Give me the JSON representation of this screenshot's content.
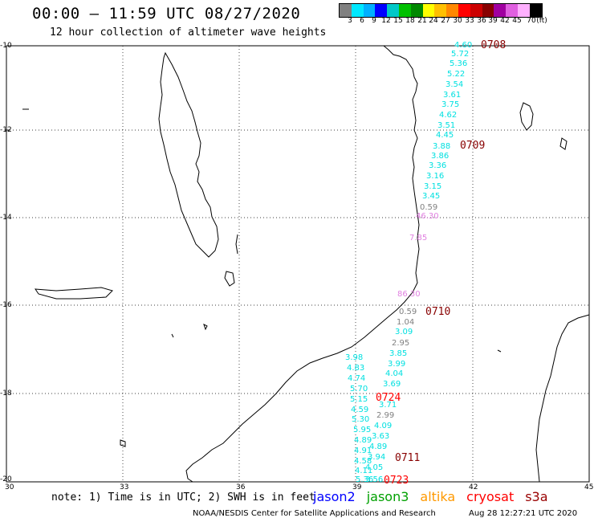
{
  "header": {
    "title": "00:00 – 11:59 UTC 08/27/2020",
    "subtitle": "12 hour collection of altimeter wave heights"
  },
  "colorbar": {
    "colors": [
      "#808080",
      "#00e8ff",
      "#00b0ff",
      "#0000ff",
      "#00c8c8",
      "#00c000",
      "#008800",
      "#ffff00",
      "#ffc000",
      "#ff8800",
      "#ff0000",
      "#cc0000",
      "#880000",
      "#a000a0",
      "#e060e0",
      "#ffb0ff",
      "#000000"
    ],
    "ticks": [
      "3",
      "6",
      "9",
      "12",
      "15",
      "18",
      "21",
      "24",
      "27",
      "30",
      "33",
      "36",
      "39",
      "42",
      "45",
      "70",
      "(ft)"
    ]
  },
  "map": {
    "lat_ticks": [
      "-10",
      "-12",
      "-14",
      "-16",
      "-18",
      "-20"
    ],
    "lon_ticks": [
      "30",
      "33",
      "36",
      "39",
      "42",
      "45"
    ]
  },
  "observations": [
    {
      "text": "4.60",
      "color": "#00e0e0"
    },
    {
      "text": "5.72",
      "color": "#00e0e0"
    },
    {
      "text": "5.36",
      "color": "#00e0e0"
    },
    {
      "text": "5.22",
      "color": "#00e0e0"
    },
    {
      "text": "3.54",
      "color": "#00e0e0"
    },
    {
      "text": "3.61",
      "color": "#00e0e0"
    },
    {
      "text": "3.75",
      "color": "#00e0e0"
    },
    {
      "text": "4.62",
      "color": "#00e0e0"
    },
    {
      "text": "3.51",
      "color": "#00e0e0"
    },
    {
      "text": "4.45",
      "color": "#00e0e0"
    },
    {
      "text": "3.88",
      "color": "#00e0e0"
    },
    {
      "text": "3.86",
      "color": "#00e0e0"
    },
    {
      "text": "3.36",
      "color": "#00e0e0"
    },
    {
      "text": "3.16",
      "color": "#00e0e0"
    },
    {
      "text": "3.15",
      "color": "#00e0e0"
    },
    {
      "text": "3.45",
      "color": "#00e0e0"
    },
    {
      "text": "0.59",
      "color": "#808080"
    },
    {
      "text": "46.30",
      "color": "#e080e0"
    },
    {
      "text": "7.85",
      "color": "#e080e0"
    },
    {
      "text": "86.30",
      "color": "#e080e0"
    },
    {
      "text": "0.59",
      "color": "#808080"
    },
    {
      "text": "1.04",
      "color": "#808080"
    },
    {
      "text": "3.09",
      "color": "#00e0e0"
    },
    {
      "text": "2.95",
      "color": "#808080"
    },
    {
      "text": "3.85",
      "color": "#00e0e0"
    },
    {
      "text": "3.99",
      "color": "#00e0e0"
    },
    {
      "text": "4.04",
      "color": "#00e0e0"
    },
    {
      "text": "3.69",
      "color": "#00e0e0"
    },
    {
      "text": "3.71",
      "color": "#00e0e0"
    },
    {
      "text": "2.99",
      "color": "#808080"
    },
    {
      "text": "4.09",
      "color": "#00e0e0"
    },
    {
      "text": "3.63",
      "color": "#00e0e0"
    },
    {
      "text": "4.89",
      "color": "#00e0e0"
    },
    {
      "text": "3.94",
      "color": "#00e0e0"
    },
    {
      "text": "4.05",
      "color": "#00e0e0"
    },
    {
      "text": "3.98",
      "color": "#00e0e0"
    },
    {
      "text": "4.83",
      "color": "#00e0e0"
    },
    {
      "text": "4.74",
      "color": "#00e0e0"
    },
    {
      "text": "5.70",
      "color": "#00e0e0"
    },
    {
      "text": "5.15",
      "color": "#00e0e0"
    },
    {
      "text": "4.59",
      "color": "#00e0e0"
    },
    {
      "text": "5.30",
      "color": "#00e0e0"
    },
    {
      "text": "5.95",
      "color": "#00e0e0"
    },
    {
      "text": "4.89",
      "color": "#00e0e0"
    },
    {
      "text": "4.91",
      "color": "#00e0e0"
    },
    {
      "text": "4.58",
      "color": "#00e0e0"
    },
    {
      "text": "4.11",
      "color": "#00e0e0"
    },
    {
      "text": "5.36",
      "color": "#00e0e0"
    },
    {
      "text": "3.56",
      "color": "#00e0e0"
    }
  ],
  "time_marks": [
    {
      "text": "0708",
      "color": "#880000"
    },
    {
      "text": "0709",
      "color": "#880000"
    },
    {
      "text": "0710",
      "color": "#880000"
    },
    {
      "text": "0724",
      "color": "#ff0000"
    },
    {
      "text": "0711",
      "color": "#880000"
    },
    {
      "text": "0723",
      "color": "#ff0000"
    }
  ],
  "footer": {
    "note": "note: 1) Time is in UTC; 2) SWH is in feet",
    "legend": [
      {
        "label": "jason2",
        "color": "#0000ff"
      },
      {
        "label": "jason3",
        "color": "#00a000"
      },
      {
        "label": "altika",
        "color": "#ff9900"
      },
      {
        "label": "cryosat",
        "color": "#ff0000"
      },
      {
        "label": "s3a",
        "color": "#990000"
      }
    ],
    "credit": "NOAA/NESDIS Center for Satellite Applications and Research",
    "timestamp": "Aug 28 12:27:21 UTC 2020"
  }
}
